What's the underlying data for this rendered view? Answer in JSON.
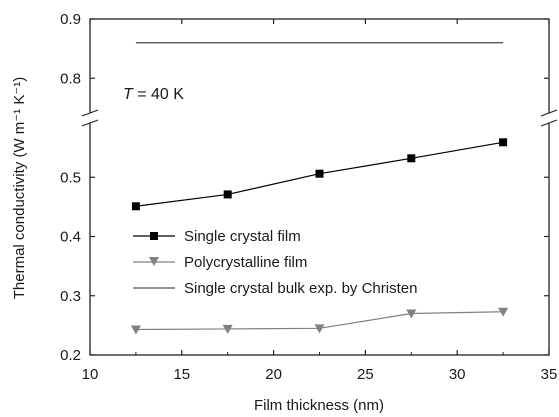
{
  "chart_data": {
    "type": "line",
    "title": "",
    "xlabel": "Film thickness (nm)",
    "ylabel": "Thermal conductivity (W m⁻¹ K⁻¹)",
    "xlim": [
      10,
      35
    ],
    "ylim": [
      0.2,
      0.9
    ],
    "axis_break": [
      0.6,
      0.7
    ],
    "x_ticks": [
      "10",
      "15",
      "20",
      "25",
      "30",
      "35"
    ],
    "y_ticks_lower": [
      "0.2",
      "0.3",
      "0.4",
      "0.5"
    ],
    "y_ticks_upper": [
      "0.8",
      "0.9"
    ],
    "annotation": {
      "italic": "T",
      "rest": " = 40 K"
    },
    "legend_position": "lower-left",
    "series": [
      {
        "name": "Single crystal film",
        "marker": "square",
        "color": "#000000",
        "x": [
          12.5,
          17.5,
          22.5,
          27.5,
          32.5
        ],
        "y": [
          0.451,
          0.471,
          0.506,
          0.532,
          0.559
        ]
      },
      {
        "name": "Polycrystalline film",
        "marker": "triangle-down",
        "color": "#808080",
        "x": [
          12.5,
          17.5,
          22.5,
          27.5,
          32.5
        ],
        "y": [
          0.243,
          0.244,
          0.245,
          0.27,
          0.273
        ]
      },
      {
        "name": "Single crystal bulk exp. by Christen",
        "marker": "none",
        "color": "#555555",
        "x": [
          12.5,
          32.5
        ],
        "y": [
          0.86,
          0.86
        ]
      }
    ]
  }
}
